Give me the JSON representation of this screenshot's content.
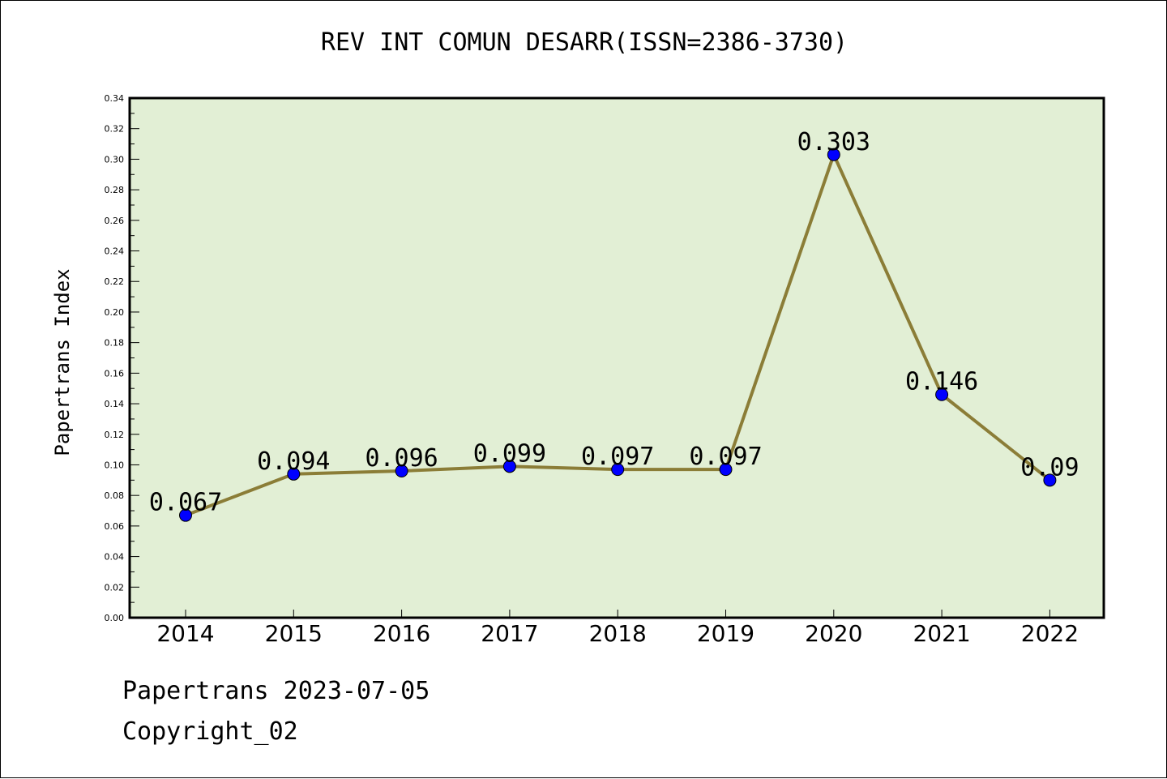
{
  "footer": {
    "line1": "Papertrans 2023-07-05",
    "line2": "Copyright_02"
  },
  "chart_data": {
    "type": "line",
    "title": "REV INT COMUN DESARR(ISSN=2386-3730)",
    "xlabel": "",
    "ylabel": "Papertrans Index",
    "categories": [
      "2014",
      "2015",
      "2016",
      "2017",
      "2018",
      "2019",
      "2020",
      "2021",
      "2022"
    ],
    "values": [
      0.067,
      0.094,
      0.096,
      0.099,
      0.097,
      0.097,
      0.303,
      0.146,
      0.09
    ],
    "value_labels": [
      "0.067",
      "0.094",
      "0.096",
      "0.099",
      "0.097",
      "0.097",
      "0.303",
      "0.146",
      "0.09"
    ],
    "ylim": [
      0,
      0.34
    ],
    "yticks": [
      "0.00",
      "0.02",
      "0.04",
      "0.06",
      "0.08",
      "0.10",
      "0.12",
      "0.14",
      "0.16",
      "0.18",
      "0.20",
      "0.22",
      "0.24",
      "0.26",
      "0.28",
      "0.30",
      "0.32",
      "0.34"
    ],
    "grid": false,
    "colors": {
      "plot_background": "#e2efd5",
      "line": "#8b7d37",
      "marker": "#0000ff"
    }
  }
}
